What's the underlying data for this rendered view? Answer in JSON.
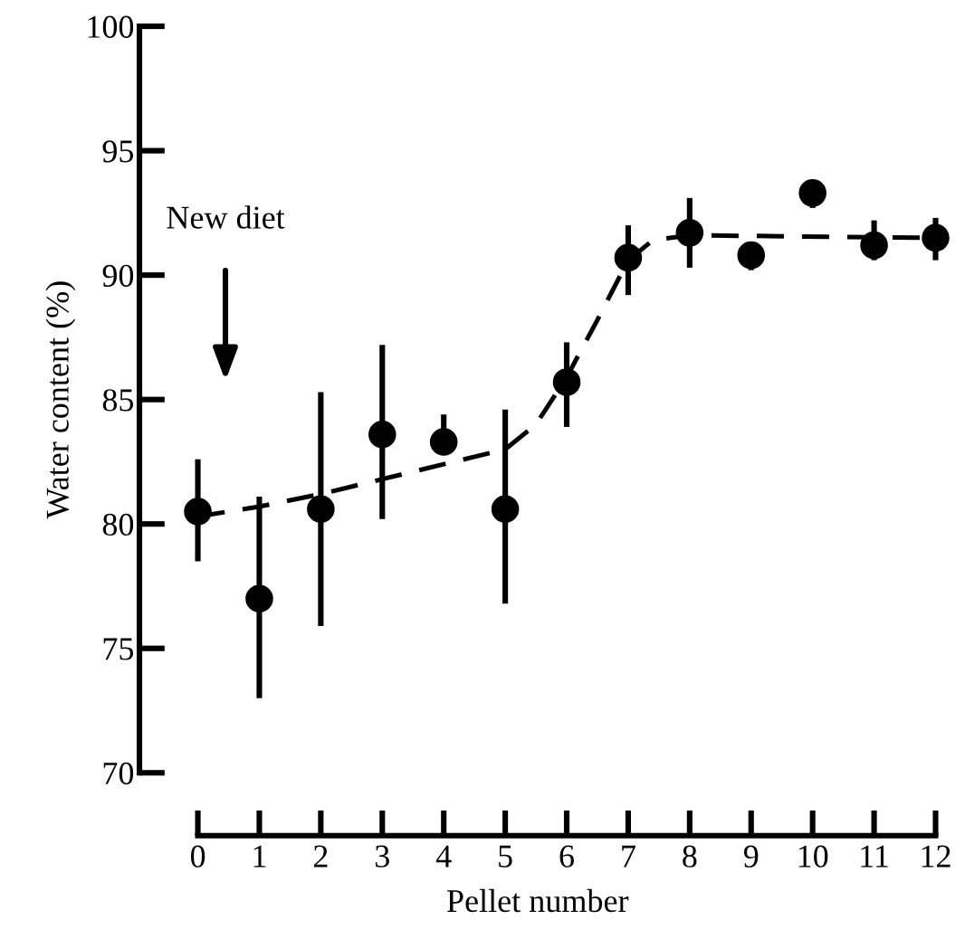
{
  "chart_data": {
    "type": "scatter",
    "xlabel": "Pellet number",
    "ylabel": "Water content (%)",
    "x": [
      0,
      1,
      2,
      3,
      4,
      5,
      6,
      7,
      8,
      9,
      10,
      11,
      12
    ],
    "series": [
      {
        "color": "#000000",
        "marker": "circle",
        "values": [
          80.5,
          77.0,
          80.6,
          83.6,
          83.3,
          80.6,
          85.7,
          90.7,
          91.7,
          90.8,
          93.3,
          91.2,
          91.5
        ],
        "errors": [
          [
            78.5,
            82.6
          ],
          [
            73.0,
            81.1
          ],
          [
            75.9,
            85.3
          ],
          [
            80.2,
            87.2
          ],
          [
            82.8,
            84.4
          ],
          [
            76.8,
            84.6
          ],
          [
            83.9,
            87.3
          ],
          [
            89.2,
            92.0
          ],
          [
            90.3,
            93.1
          ],
          [
            90.2,
            91.2
          ],
          [
            92.7,
            93.8
          ],
          [
            90.6,
            92.2
          ],
          [
            90.6,
            92.3
          ]
        ]
      },
      {
        "type": "line",
        "color": "#000000",
        "line_style": "dashed",
        "marker": "none",
        "x": [
          0,
          1,
          2,
          3,
          4,
          5,
          5.5,
          6,
          6.5,
          7,
          7.4,
          8,
          12
        ],
        "values": [
          80.3,
          80.7,
          81.2,
          81.8,
          82.4,
          83.0,
          84.0,
          85.9,
          88.2,
          90.6,
          91.4,
          91.6,
          91.5
        ]
      }
    ],
    "annotations": [
      "New diet"
    ],
    "xlim": [
      -0.95,
      12
    ],
    "xticks": [
      0,
      1,
      2,
      3,
      4,
      5,
      6,
      7,
      8,
      9,
      10,
      11,
      12
    ],
    "ylim": [
      70,
      100
    ],
    "yticks": [
      70,
      75,
      80,
      85,
      90,
      95,
      100
    ],
    "grid": false,
    "legend": false
  }
}
